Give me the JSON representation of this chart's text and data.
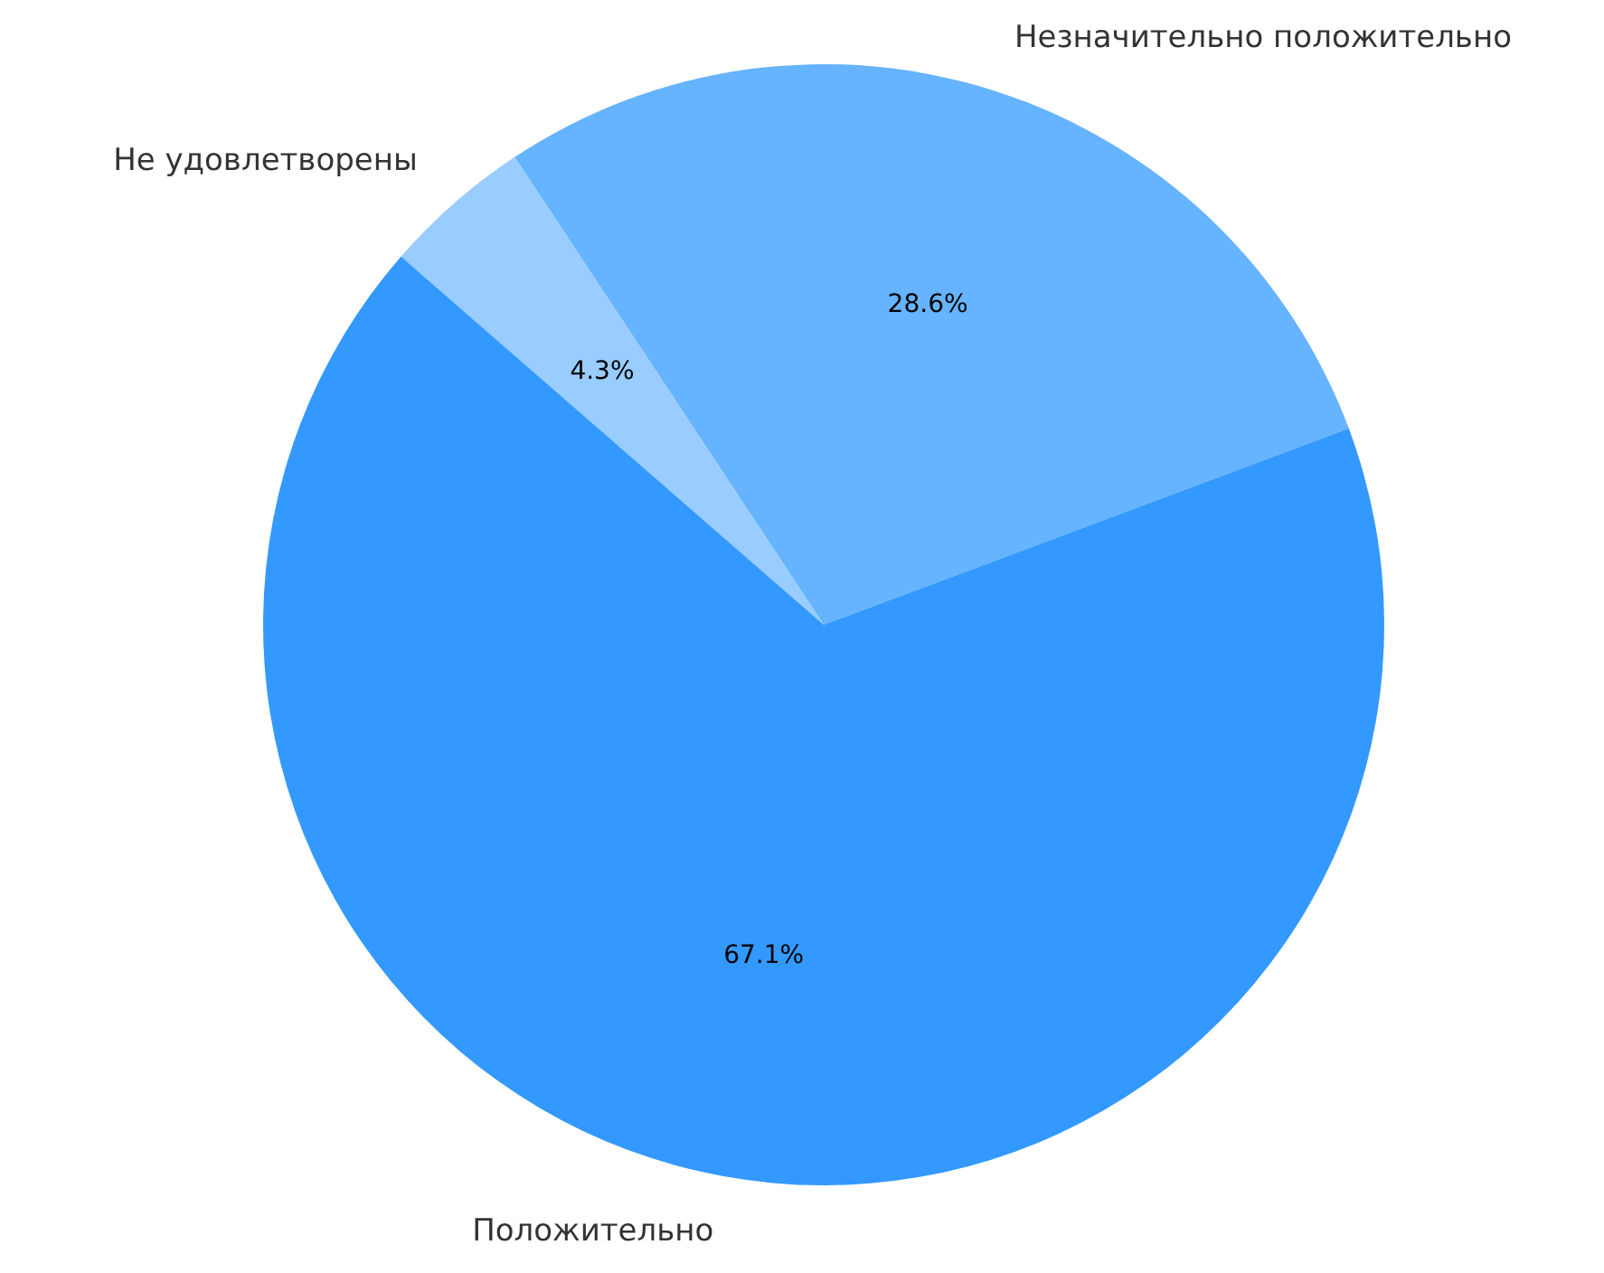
{
  "chart_data": {
    "type": "pie",
    "categories": [
      "Незначительно положительно",
      "Не удовлетворены",
      "Положительно"
    ],
    "values": [
      28.6,
      4.3,
      67.1
    ],
    "colors": [
      "#66b3ff",
      "#99ccff",
      "#3399ff"
    ],
    "value_labels": [
      "28.6%",
      "4.3%",
      "67.1%"
    ]
  }
}
